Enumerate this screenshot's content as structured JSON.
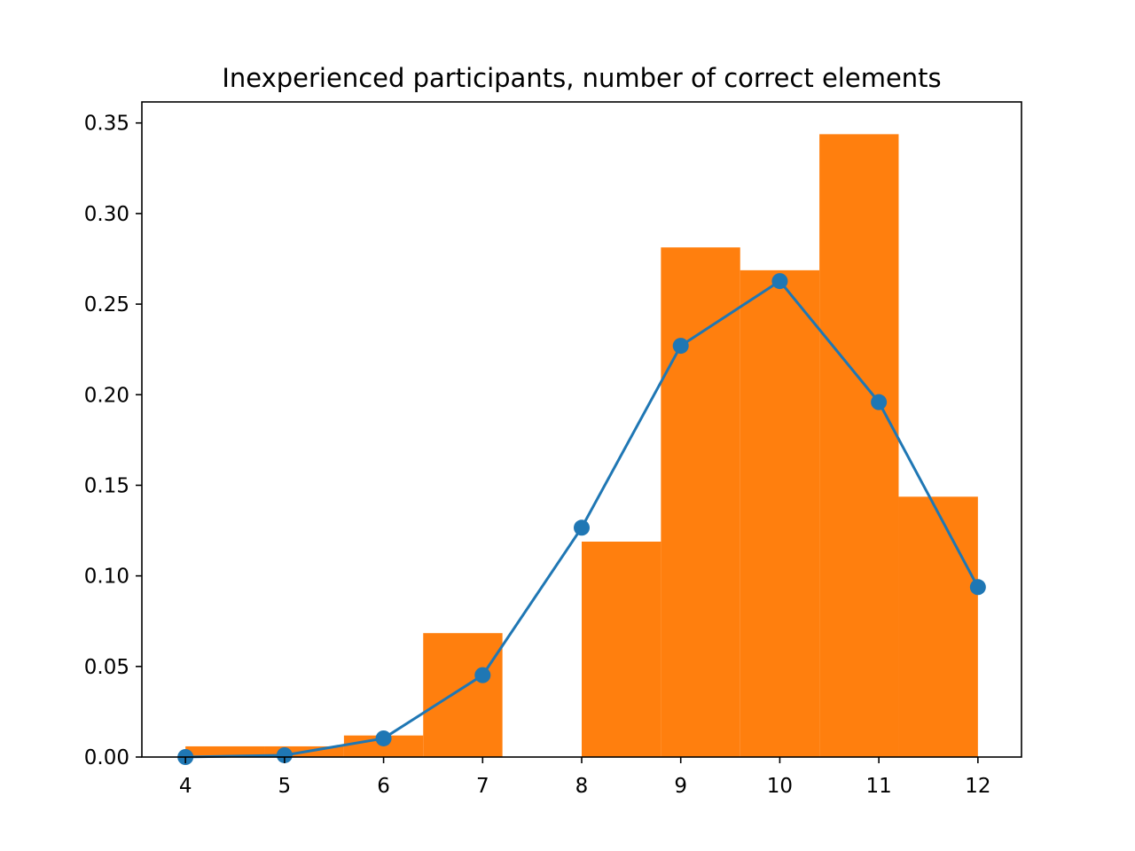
{
  "chart_data": {
    "type": "bar",
    "title": "Inexperienced participants, number of correct elements",
    "xlabel": "",
    "ylabel": "",
    "xlim": [
      3.56,
      12.44
    ],
    "ylim": [
      0,
      0.3616
    ],
    "grid": false,
    "xticks": [
      "4",
      "5",
      "6",
      "7",
      "8",
      "9",
      "10",
      "11",
      "12"
    ],
    "yticks": [
      "0.00",
      "0.05",
      "0.10",
      "0.15",
      "0.20",
      "0.25",
      "0.30",
      "0.35"
    ],
    "colors": {
      "histogram": "#ff7f0e",
      "line": "#1f77b4"
    },
    "histogram": {
      "bins": [
        {
          "x0": 4.0,
          "x1": 4.8,
          "value": 0.0059
        },
        {
          "x0": 4.8,
          "x1": 5.6,
          "value": 0.0059
        },
        {
          "x0": 5.6,
          "x1": 6.4,
          "value": 0.0119
        },
        {
          "x0": 6.4,
          "x1": 7.2,
          "value": 0.0684
        },
        {
          "x0": 7.2,
          "x1": 8.0,
          "value": 0.0
        },
        {
          "x0": 8.0,
          "x1": 8.8,
          "value": 0.1189
        },
        {
          "x0": 8.8,
          "x1": 9.6,
          "value": 0.2813
        },
        {
          "x0": 9.6,
          "x1": 10.4,
          "value": 0.2687
        },
        {
          "x0": 10.4,
          "x1": 11.2,
          "value": 0.3438
        },
        {
          "x0": 11.2,
          "x1": 12.0,
          "value": 0.1437
        }
      ]
    },
    "series": [
      {
        "x": [
          4,
          5,
          6,
          7,
          8,
          9,
          10,
          11,
          12
        ],
        "values": [
          0.0,
          0.001,
          0.0103,
          0.0452,
          0.1266,
          0.227,
          0.2627,
          0.1959,
          0.0938
        ]
      }
    ]
  }
}
